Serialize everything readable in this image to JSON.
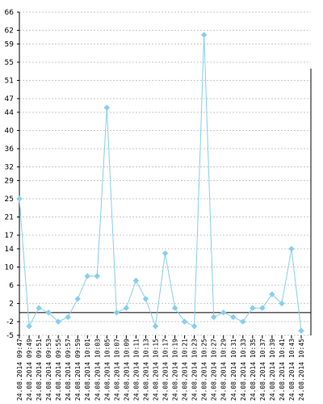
{
  "chart_data": {
    "type": "line",
    "title": "",
    "xlabel": "",
    "ylabel": "",
    "ylim": [
      -5,
      66
    ],
    "y_ticks": [
      -5,
      -2,
      2,
      6,
      10,
      14,
      17,
      21,
      25,
      29,
      32,
      36,
      40,
      44,
      47,
      51,
      55,
      59,
      62,
      66
    ],
    "grid": true,
    "legend": "none",
    "line_color": "#87CEEB",
    "marker_color": "#87CEEB",
    "zero_line_color": "#000000",
    "categories": [
      "24.08.2014 09:47",
      "24.08.2014 09:49",
      "24.08.2014 09:51",
      "24.08.2014 09:53",
      "24.08.2014 09:55",
      "24.08.2014 09:57",
      "24.08.2014 09:59",
      "24.08.2014 10:01",
      "24.08.2014 10:03",
      "24.08.2014 10:05",
      "24.08.2014 10:07",
      "24.08.2014 10:09",
      "24.08.2014 10:11",
      "24.08.2014 10:13",
      "24.08.2014 10:15",
      "24.08.2014 10:17",
      "24.08.2014 10:19",
      "24.08.2014 10:21",
      "24.08.2014 10:23",
      "24.08.2014 10:25",
      "24.08.2014 10:27",
      "24.08.2014 10:29",
      "24.08.2014 10:31",
      "24.08.2014 10:33",
      "24.08.2014 10:35",
      "24.08.2014 10:37",
      "24.08.2014 10:39",
      "24.08.2014 10:41",
      "24.08.2014 10:43",
      "24.08.2014 10:45"
    ],
    "values": [
      25,
      -3,
      1,
      0,
      -2,
      -1,
      3,
      8,
      8,
      45,
      0,
      1,
      7,
      3,
      -3,
      13,
      1,
      -2,
      -3,
      61,
      -1,
      0,
      -1,
      -2,
      1,
      1,
      4,
      2,
      14,
      -4
    ]
  }
}
